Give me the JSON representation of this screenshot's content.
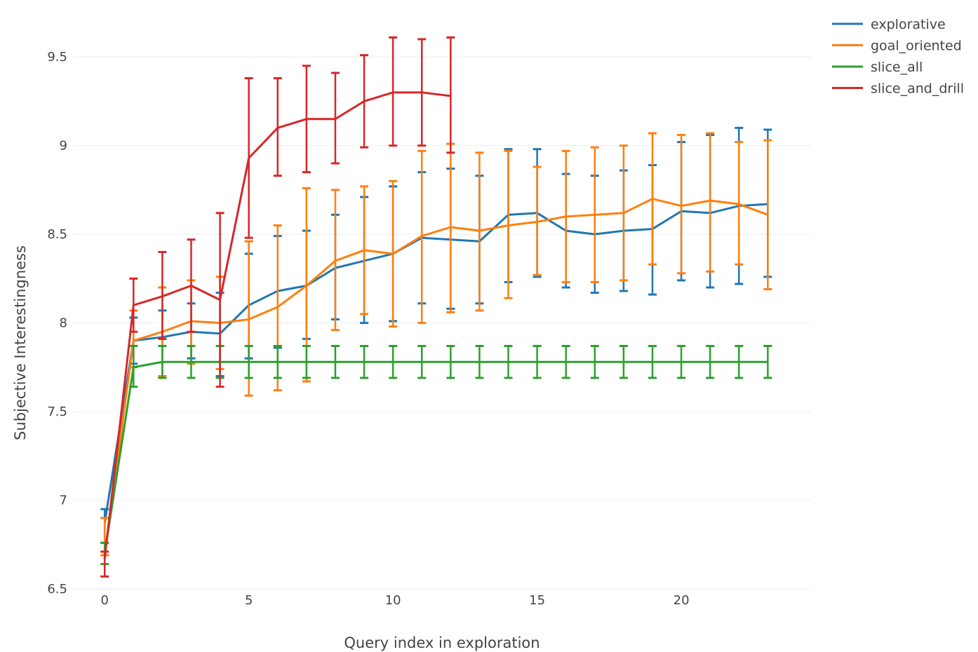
{
  "chart_data": {
    "type": "line",
    "title": "",
    "xlabel": "Query index in exploration",
    "ylabel": "Subjective Interestingness",
    "xlim": [
      -1.1,
      24.5
    ],
    "ylim": [
      6.5,
      9.75
    ],
    "x_ticks": [
      0,
      5,
      10,
      15,
      20
    ],
    "x_tick_labels": [
      "0",
      "5",
      "10",
      "15",
      "20"
    ],
    "y_ticks": [
      6.5,
      7,
      7.5,
      8,
      8.5,
      9,
      9.5
    ],
    "y_tick_labels": [
      "6.5",
      "7",
      "7.5",
      "8",
      "8.5",
      "9",
      "9.5"
    ],
    "grid": true,
    "legend_position": "top-right",
    "series": [
      {
        "name": "explorative",
        "color": "#1f77b4",
        "x": [
          0,
          1,
          2,
          3,
          4,
          5,
          6,
          7,
          8,
          9,
          10,
          11,
          12,
          13,
          14,
          15,
          16,
          17,
          18,
          19,
          20,
          21,
          22,
          23
        ],
        "y": [
          6.87,
          7.9,
          7.92,
          7.95,
          7.94,
          8.1,
          8.18,
          8.21,
          8.31,
          8.35,
          8.39,
          8.48,
          8.47,
          8.46,
          8.61,
          8.62,
          8.52,
          8.5,
          8.52,
          8.53,
          8.63,
          8.62,
          8.66,
          8.67
        ],
        "err_low": [
          6.76,
          7.77,
          7.7,
          7.8,
          7.7,
          7.8,
          7.86,
          7.91,
          8.02,
          8.0,
          8.01,
          8.11,
          8.08,
          8.11,
          8.23,
          8.26,
          8.2,
          8.17,
          8.18,
          8.16,
          8.24,
          8.2,
          8.22,
          8.26
        ],
        "err_high": [
          6.95,
          8.03,
          8.07,
          8.11,
          8.17,
          8.39,
          8.49,
          8.52,
          8.61,
          8.71,
          8.77,
          8.85,
          8.87,
          8.83,
          8.98,
          8.98,
          8.84,
          8.83,
          8.86,
          8.89,
          9.02,
          9.06,
          9.1,
          9.09
        ]
      },
      {
        "name": "goal_oriented",
        "color": "#ff7f0e",
        "x": [
          0,
          1,
          2,
          3,
          4,
          5,
          6,
          7,
          8,
          9,
          10,
          11,
          12,
          13,
          14,
          15,
          16,
          17,
          18,
          19,
          20,
          21,
          22,
          23
        ],
        "y": [
          6.69,
          7.9,
          7.95,
          8.01,
          8.0,
          8.02,
          8.09,
          8.21,
          8.35,
          8.41,
          8.39,
          8.49,
          8.54,
          8.52,
          8.55,
          8.57,
          8.6,
          8.61,
          8.62,
          8.7,
          8.66,
          8.69,
          8.67,
          8.61
        ],
        "err_low": [
          6.69,
          7.75,
          7.7,
          7.77,
          7.74,
          7.59,
          7.62,
          7.67,
          7.96,
          8.05,
          7.98,
          8.0,
          8.06,
          8.07,
          8.14,
          8.27,
          8.23,
          8.23,
          8.24,
          8.33,
          8.28,
          8.29,
          8.33,
          8.19
        ],
        "err_high": [
          6.9,
          8.07,
          8.2,
          8.24,
          8.26,
          8.46,
          8.55,
          8.76,
          8.75,
          8.77,
          8.8,
          8.97,
          9.01,
          8.96,
          8.97,
          8.88,
          8.97,
          8.99,
          9.0,
          9.07,
          9.06,
          9.07,
          9.02,
          9.03
        ]
      },
      {
        "name": "slice_all",
        "color": "#2ca02c",
        "x": [
          0,
          1,
          2,
          3,
          4,
          5,
          6,
          7,
          8,
          9,
          10,
          11,
          12,
          13,
          14,
          15,
          16,
          17,
          18,
          19,
          20,
          21,
          22,
          23
        ],
        "y": [
          6.7,
          7.75,
          7.78,
          7.78,
          7.78,
          7.78,
          7.78,
          7.78,
          7.78,
          7.78,
          7.78,
          7.78,
          7.78,
          7.78,
          7.78,
          7.78,
          7.78,
          7.78,
          7.78,
          7.78,
          7.78,
          7.78,
          7.78,
          7.78
        ],
        "err_low": [
          6.64,
          7.64,
          7.69,
          7.69,
          7.69,
          7.69,
          7.69,
          7.69,
          7.69,
          7.69,
          7.69,
          7.69,
          7.69,
          7.69,
          7.69,
          7.69,
          7.69,
          7.69,
          7.69,
          7.69,
          7.69,
          7.69,
          7.69,
          7.69
        ],
        "err_high": [
          6.76,
          7.87,
          7.87,
          7.87,
          7.87,
          7.87,
          7.87,
          7.87,
          7.87,
          7.87,
          7.87,
          7.87,
          7.87,
          7.87,
          7.87,
          7.87,
          7.87,
          7.87,
          7.87,
          7.87,
          7.87,
          7.87,
          7.87,
          7.87
        ]
      },
      {
        "name": "slice_and_drill",
        "color": "#d62728",
        "x": [
          0,
          1,
          2,
          3,
          4,
          5,
          6,
          7,
          8,
          9,
          10,
          11,
          12
        ],
        "y": [
          6.67,
          8.1,
          8.15,
          8.21,
          8.13,
          8.93,
          9.1,
          9.15,
          9.15,
          9.25,
          9.3,
          9.3,
          9.28
        ],
        "err_low": [
          6.57,
          7.95,
          7.91,
          7.95,
          7.64,
          8.48,
          8.83,
          8.85,
          8.9,
          8.99,
          9.0,
          9.0,
          8.96
        ],
        "err_high": [
          6.71,
          8.25,
          8.4,
          8.47,
          8.62,
          9.38,
          9.38,
          9.45,
          9.41,
          9.51,
          9.61,
          9.6,
          9.61
        ]
      }
    ]
  }
}
